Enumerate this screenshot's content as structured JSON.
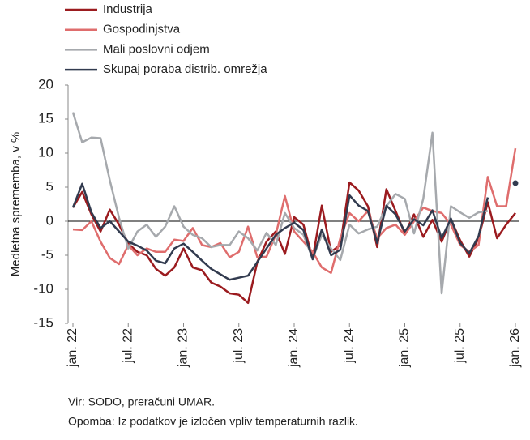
{
  "chart_data": {
    "type": "line",
    "y_label": "Medletna sprememba, v %",
    "source": "Vir: SODO, preračuni UMAR.",
    "note": "Opomba: Iz podatkov je izločen vpliv temperaturnih razlik.",
    "categories": [
      "jan. 22",
      null,
      null,
      null,
      null,
      null,
      "jul. 22",
      null,
      null,
      null,
      null,
      null,
      "jan. 23",
      null,
      null,
      null,
      null,
      null,
      "jul. 23",
      null,
      null,
      null,
      null,
      null,
      "jan. 24",
      null,
      null,
      null,
      null,
      null,
      "jul. 24",
      null,
      null,
      null,
      null,
      null,
      "jan. 25",
      null,
      null,
      null,
      null,
      null,
      "jul. 25",
      null,
      null,
      null,
      null,
      null,
      "jan. 26"
    ],
    "ylim": [
      -15,
      20
    ],
    "yticks": [
      -15,
      -10,
      -5,
      0,
      5,
      10,
      15,
      20
    ],
    "baseline": 0,
    "series": [
      {
        "name": "Industrija",
        "color": "#9b1b1f",
        "values": [
          2,
          4.3,
          1,
          -1.5,
          1.7,
          -0.5,
          -3.3,
          -4.5,
          -5,
          -7,
          -8,
          -6.8,
          -4,
          -6.8,
          -7.2,
          -9,
          -9.6,
          -10.6,
          -10.8,
          -12,
          -6,
          -3,
          -1.5,
          -4.8,
          0.6,
          -0.5,
          -5.5,
          2.3,
          -4.5,
          -3.5,
          5.7,
          4.5,
          2.2,
          -3.8,
          4.7,
          1.5,
          -1.8,
          1,
          -2.3,
          0.2,
          -3,
          0.3,
          -2.8,
          -5.2,
          -2.5,
          2.8,
          -2.5,
          -0.5,
          1.2
        ]
      },
      {
        "name": "Gospodinjstva",
        "color": "#df6d6d",
        "values": [
          -1.2,
          -1.3,
          0,
          -3,
          -5.4,
          -6.3,
          -3.5,
          -5,
          -4,
          -4.5,
          -4.5,
          -2.7,
          -2.9,
          -1,
          -3.5,
          -3.8,
          -3.2,
          -5.3,
          -4.5,
          -0.8,
          -5.3,
          -5.2,
          -2,
          3.7,
          -1.5,
          -3,
          -4.5,
          -6.8,
          -7.6,
          -2.5,
          1.2,
          0,
          1.5,
          -2.5,
          -1,
          -0.5,
          -2,
          0,
          2,
          1.5,
          1.2,
          -0.5,
          -3.5,
          -4.5,
          -3.5,
          6.5,
          2.2,
          2.2,
          10.7
        ]
      },
      {
        "name": "Mali poslovni odjem",
        "color": "#a6a9ad",
        "values": [
          16,
          11.6,
          12.3,
          12.2,
          6,
          0.5,
          -4,
          -1.5,
          -0.5,
          -2.3,
          -0.8,
          2.2,
          -0.8,
          -2,
          -2.5,
          -3.8,
          -3.5,
          -3.5,
          -1.5,
          -2.5,
          -4.3,
          -1.7,
          -3.5,
          1.2,
          -1,
          -2,
          -5.5,
          -2,
          -4,
          -5.7,
          -0.5,
          -1.8,
          -1.2,
          -0.8,
          2.2,
          4,
          3.3,
          -1.8,
          3.3,
          13,
          -10.6,
          2.2,
          1.3,
          0.5,
          1.3,
          1.5,
          null,
          null,
          null
        ]
      },
      {
        "name": "Skupaj poraba distrib. omrežja",
        "color": "#323b4f",
        "values": [
          2,
          5.5,
          1.3,
          -1,
          0,
          -1.5,
          -3,
          -3.6,
          -4.3,
          -5.8,
          -6.2,
          -4,
          -3.3,
          -4.5,
          -5.8,
          -7,
          -7.8,
          -8.6,
          -8.3,
          -8,
          -6,
          -4,
          -2,
          -1,
          -0.2,
          -1.3,
          -5.6,
          -1.2,
          -5,
          -4.2,
          3.8,
          2.3,
          1.5,
          -3.2,
          2.3,
          1,
          -1.5,
          0.3,
          -0.6,
          1.6,
          -2.5,
          0.4,
          -3.2,
          -4.7,
          -2.2,
          3.5,
          null,
          null,
          5.6
        ]
      }
    ]
  }
}
